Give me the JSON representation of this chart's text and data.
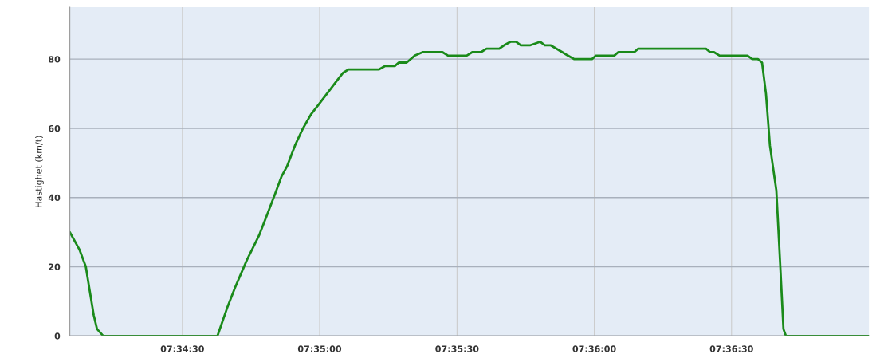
{
  "chart_data": {
    "type": "line",
    "ylabel": "Hastighet (km/t)",
    "x": [
      7.56817,
      7.56875,
      7.56914,
      7.56938,
      7.56962,
      7.56982,
      7.5702,
      7.57713,
      7.57771,
      7.5782,
      7.57892,
      7.57965,
      7.58014,
      7.58062,
      7.58101,
      7.58135,
      7.58183,
      7.58232,
      7.5828,
      7.58329,
      7.58377,
      7.58425,
      7.58474,
      7.58508,
      7.58547,
      7.58692,
      7.58731,
      7.58789,
      7.58813,
      7.58861,
      7.5891,
      7.58958,
      7.59079,
      7.59113,
      7.59225,
      7.59259,
      7.59312,
      7.59346,
      7.59423,
      7.59453,
      7.59491,
      7.59525,
      7.59554,
      7.59612,
      7.59671,
      7.597,
      7.59734,
      7.59806,
      7.5984,
      7.59879,
      7.59986,
      7.6001,
      7.60121,
      7.60145,
      7.60242,
      7.60267,
      7.60678,
      7.60703,
      7.60727,
      7.60761,
      7.6093,
      7.60959,
      7.60993,
      7.61018,
      7.61042,
      7.61066,
      7.61105,
      7.61129,
      7.61148,
      7.61163,
      7.61667
    ],
    "series": [
      {
        "color": "#1a8a1a",
        "values": [
          30,
          25,
          20,
          13,
          6,
          2,
          0,
          0,
          8,
          14,
          22,
          29,
          35,
          41,
          46,
          49,
          55,
          60,
          64,
          67,
          70,
          73,
          76,
          77,
          77,
          77,
          78,
          78,
          79,
          79,
          81,
          82,
          82,
          81,
          81,
          82,
          82,
          83,
          83,
          84,
          85,
          85,
          84,
          84,
          85,
          84,
          84,
          82,
          81,
          80,
          80,
          81,
          81,
          82,
          82,
          83,
          83,
          82,
          82,
          81,
          81,
          80,
          80,
          79,
          70,
          55,
          42,
          20,
          2,
          0,
          0
        ]
      }
    ],
    "xlim": [
      7.56817,
      7.61667
    ],
    "xticks": [
      {
        "value": 7.575,
        "label": "07:34:30"
      },
      {
        "value": 7.58333,
        "label": "07:35:00"
      },
      {
        "value": 7.59167,
        "label": "07:35:30"
      },
      {
        "value": 7.6,
        "label": "07:36:00"
      },
      {
        "value": 7.60833,
        "label": "07:36:30"
      }
    ],
    "ylim": [
      0,
      95
    ],
    "yticks": [
      0,
      20,
      40,
      60,
      80
    ],
    "grid": true,
    "marker": "none",
    "line_style": "solid"
  }
}
